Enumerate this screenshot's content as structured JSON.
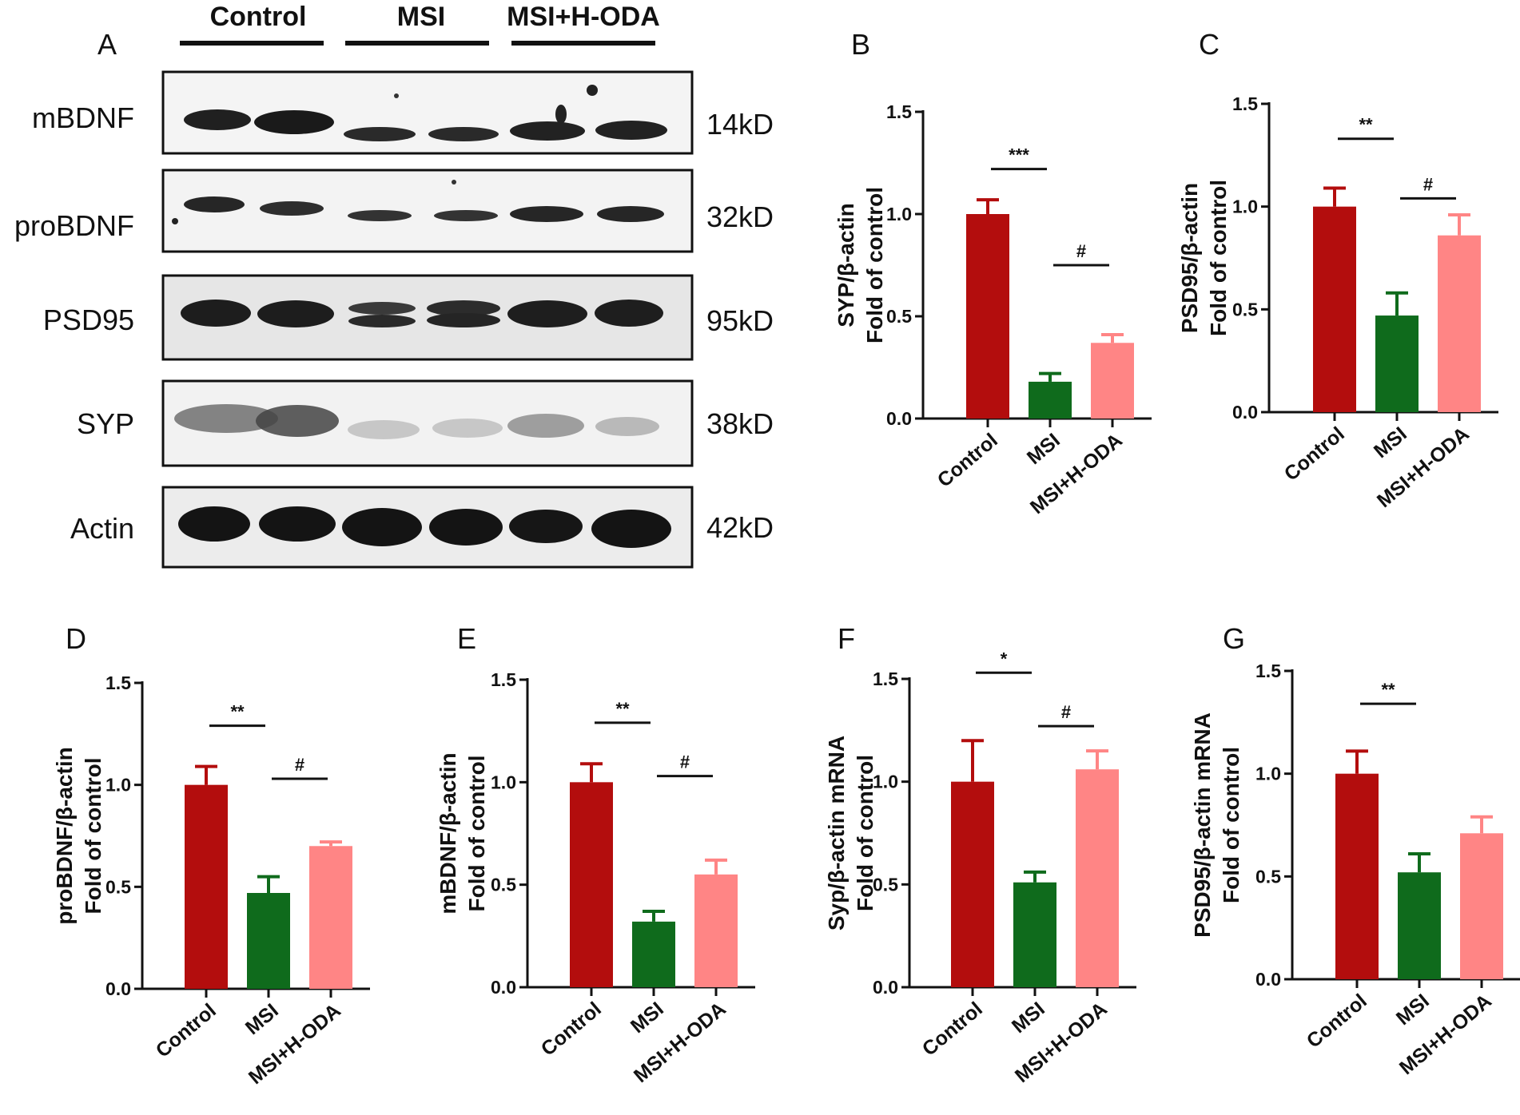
{
  "colors": {
    "control": "#b30d0d",
    "msi": "#0f6b1c",
    "msi_hoda": "#ff8585",
    "error": "#000000"
  },
  "blot": {
    "panel_letter": "A",
    "groups": [
      "Control",
      "MSI",
      "MSI+H-ODA"
    ],
    "rows": [
      {
        "name": "mBDNF",
        "size": "14kD"
      },
      {
        "name": "proBDNF",
        "size": "32kD"
      },
      {
        "name": "PSD95",
        "size": "95kD"
      },
      {
        "name": "SYP",
        "size": "38kD"
      },
      {
        "name": "Actin",
        "size": "42kD"
      }
    ]
  },
  "chart_data": [
    {
      "panel": "B",
      "type": "bar",
      "ylabel": [
        "SYP/β-actin",
        "Fold of control"
      ],
      "categories": [
        "Control",
        "MSI",
        "MSI+H-ODA"
      ],
      "values": [
        1.0,
        0.18,
        0.37
      ],
      "errors": [
        0.07,
        0.04,
        0.04
      ],
      "ylim": [
        0,
        1.5
      ],
      "yticks": [
        "0.0",
        "0.5",
        "1.0",
        "1.5"
      ],
      "significance": [
        {
          "from": 0,
          "to": 1,
          "label": "***",
          "y": 1.22
        },
        {
          "from": 1,
          "to": 2,
          "label": "#",
          "y": 0.75
        }
      ]
    },
    {
      "panel": "C",
      "type": "bar",
      "ylabel": [
        "PSD95/β-actin",
        "Fold of control"
      ],
      "categories": [
        "Control",
        "MSI",
        "MSI+H-ODA"
      ],
      "values": [
        1.0,
        0.47,
        0.86
      ],
      "errors": [
        0.09,
        0.11,
        0.1
      ],
      "ylim": [
        0,
        1.5
      ],
      "yticks": [
        "0.0",
        "0.5",
        "1.0",
        "1.5"
      ],
      "significance": [
        {
          "from": 0,
          "to": 1,
          "label": "**",
          "y": 1.33
        },
        {
          "from": 1,
          "to": 2,
          "label": "#",
          "y": 1.04
        }
      ]
    },
    {
      "panel": "D",
      "type": "bar",
      "ylabel": [
        "proBDNF/β-actin",
        "Fold of control"
      ],
      "categories": [
        "Control",
        "MSI",
        "MSI+H-ODA"
      ],
      "values": [
        1.0,
        0.47,
        0.7
      ],
      "errors": [
        0.09,
        0.08,
        0.02
      ],
      "ylim": [
        0,
        1.5
      ],
      "yticks": [
        "0.0",
        "0.5",
        "1.0",
        "1.5"
      ],
      "significance": [
        {
          "from": 0,
          "to": 1,
          "label": "**",
          "y": 1.29
        },
        {
          "from": 1,
          "to": 2,
          "label": "#",
          "y": 1.03
        }
      ]
    },
    {
      "panel": "E",
      "type": "bar",
      "ylabel": [
        "mBDNF/β-actin",
        "Fold of control"
      ],
      "categories": [
        "Control",
        "MSI",
        "MSI+H-ODA"
      ],
      "values": [
        1.0,
        0.32,
        0.55
      ],
      "errors": [
        0.09,
        0.05,
        0.07
      ],
      "ylim": [
        0,
        1.5
      ],
      "yticks": [
        "0.0",
        "0.5",
        "1.0",
        "1.5"
      ],
      "significance": [
        {
          "from": 0,
          "to": 1,
          "label": "**",
          "y": 1.29
        },
        {
          "from": 1,
          "to": 2,
          "label": "#",
          "y": 1.03
        }
      ]
    },
    {
      "panel": "F",
      "type": "bar",
      "ylabel": [
        "Syp/β-actin mRNA",
        "Fold of control"
      ],
      "categories": [
        "Control",
        "MSI",
        "MSI+H-ODA"
      ],
      "values": [
        1.0,
        0.51,
        1.06
      ],
      "errors": [
        0.2,
        0.05,
        0.09
      ],
      "ylim": [
        0,
        1.5
      ],
      "yticks": [
        "0.0",
        "0.5",
        "1.0",
        "1.5"
      ],
      "significance": [
        {
          "from": 0,
          "to": 1,
          "label": "*",
          "y": 1.53
        },
        {
          "from": 1,
          "to": 2,
          "label": "#",
          "y": 1.27
        }
      ]
    },
    {
      "panel": "G",
      "type": "bar",
      "ylabel": [
        "PSD95/β-actin mRNA",
        "Fold of control"
      ],
      "categories": [
        "Control",
        "MSI",
        "MSI+H-ODA"
      ],
      "values": [
        1.0,
        0.52,
        0.71
      ],
      "errors": [
        0.11,
        0.09,
        0.08
      ],
      "ylim": [
        0,
        1.5
      ],
      "yticks": [
        "0.0",
        "0.5",
        "1.0",
        "1.5"
      ],
      "significance": [
        {
          "from": 0,
          "to": 1,
          "label": "**",
          "y": 1.34
        }
      ]
    }
  ]
}
